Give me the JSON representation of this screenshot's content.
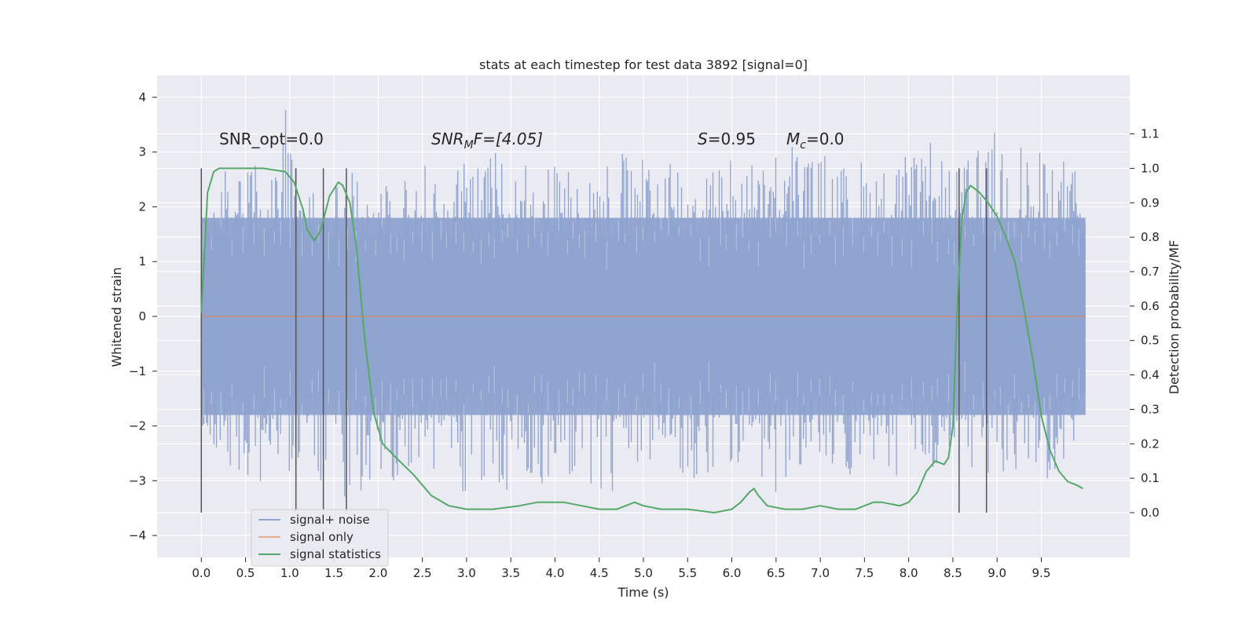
{
  "chart_data": {
    "type": "line",
    "title": "stats at each timestep for test data 3892 [signal=0]",
    "xlabel": "Time (s)",
    "ylabel": "Whitened strain",
    "y2label": "Detection probability/MF",
    "xlim": [
      -0.5,
      10.5
    ],
    "ylim": [
      -4.4,
      4.4
    ],
    "y2lim": [
      -0.13,
      1.27
    ],
    "grid": true,
    "legend_position": "lower-left",
    "x_ticks": [
      "0.0",
      "0.5",
      "1.0",
      "1.5",
      "2.0",
      "2.5",
      "3.0",
      "3.5",
      "4.0",
      "4.5",
      "5.0",
      "5.5",
      "6.0",
      "6.5",
      "7.0",
      "7.5",
      "8.0",
      "8.5",
      "9.0",
      "9.5"
    ],
    "y_ticks": [
      "−4",
      "−3",
      "−2",
      "−1",
      "0",
      "1",
      "2",
      "3",
      "4"
    ],
    "y2_ticks": [
      "0.0",
      "0.1",
      "0.2",
      "0.3",
      "0.4",
      "0.5",
      "0.6",
      "0.7",
      "0.8",
      "0.9",
      "1.0",
      "1.1"
    ],
    "annotations": {
      "snr_opt": "SNR_opt=0.0",
      "snr_mf_base": "SNR",
      "snr_mf_sub": "M",
      "snr_mf_rest": "F=[4.05]",
      "s_label": "S",
      "s_value": "=0.95",
      "mc_base": "M",
      "mc_sub": "c",
      "mc_value": "=0.0"
    },
    "vlines_x": [
      0.0,
      1.07,
      1.38,
      1.64,
      8.57,
      8.88
    ],
    "noise_envelope": {
      "x_range": [
        0.0,
        10.0
      ],
      "peak_upper": [
        [
          0.0,
          1.7
        ],
        [
          0.15,
          2.4
        ],
        [
          0.3,
          2.8
        ],
        [
          0.45,
          2.5
        ],
        [
          0.6,
          2.9
        ],
        [
          0.75,
          2.6
        ],
        [
          0.95,
          4.0
        ],
        [
          1.1,
          2.4
        ],
        [
          1.3,
          2.3
        ],
        [
          1.5,
          2.6
        ],
        [
          1.65,
          2.8
        ],
        [
          1.8,
          2.4
        ],
        [
          2.0,
          2.5
        ],
        [
          2.15,
          3.5
        ],
        [
          2.3,
          2.6
        ],
        [
          2.5,
          2.9
        ],
        [
          2.7,
          2.6
        ],
        [
          2.9,
          3.0
        ],
        [
          3.1,
          2.7
        ],
        [
          3.3,
          3.2
        ],
        [
          3.5,
          2.6
        ],
        [
          3.7,
          3.3
        ],
        [
          3.9,
          3.0
        ],
        [
          4.1,
          2.8
        ],
        [
          4.3,
          3.1
        ],
        [
          4.5,
          2.7
        ],
        [
          4.7,
          3.3
        ],
        [
          4.9,
          2.8
        ],
        [
          5.1,
          3.0
        ],
        [
          5.3,
          3.4
        ],
        [
          5.5,
          2.7
        ],
        [
          5.7,
          3.0
        ],
        [
          5.9,
          2.8
        ],
        [
          6.1,
          3.2
        ],
        [
          6.3,
          2.8
        ],
        [
          6.5,
          3.1
        ],
        [
          6.7,
          3.4
        ],
        [
          6.9,
          2.9
        ],
        [
          7.1,
          3.2
        ],
        [
          7.3,
          2.7
        ],
        [
          7.5,
          3.0
        ],
        [
          7.7,
          2.8
        ],
        [
          7.9,
          3.1
        ],
        [
          8.1,
          2.9
        ],
        [
          8.3,
          3.3
        ],
        [
          8.5,
          2.6
        ],
        [
          8.7,
          3.0
        ],
        [
          8.9,
          3.2
        ],
        [
          9.1,
          3.9
        ],
        [
          9.3,
          3.2
        ],
        [
          9.5,
          3.0
        ],
        [
          9.7,
          3.1
        ],
        [
          9.9,
          2.7
        ],
        [
          10.0,
          1.8
        ]
      ],
      "peak_lower": [
        [
          0.0,
          -2.4
        ],
        [
          0.15,
          -2.6
        ],
        [
          0.3,
          -2.9
        ],
        [
          0.45,
          -3.0
        ],
        [
          0.5,
          -3.6
        ],
        [
          0.7,
          -3.2
        ],
        [
          0.9,
          -3.1
        ],
        [
          1.1,
          -2.8
        ],
        [
          1.3,
          -3.0
        ],
        [
          1.5,
          -3.1
        ],
        [
          1.7,
          -3.5
        ],
        [
          1.9,
          -3.0
        ],
        [
          2.1,
          -2.9
        ],
        [
          2.3,
          -3.2
        ],
        [
          2.5,
          -2.8
        ],
        [
          2.7,
          -3.0
        ],
        [
          2.9,
          -3.3
        ],
        [
          3.1,
          -3.1
        ],
        [
          3.35,
          -3.95
        ],
        [
          3.5,
          -3.3
        ],
        [
          3.7,
          -2.9
        ],
        [
          3.9,
          -3.1
        ],
        [
          4.1,
          -2.9
        ],
        [
          4.3,
          -3.1
        ],
        [
          4.5,
          -3.3
        ],
        [
          4.7,
          -3.2
        ],
        [
          4.9,
          -2.9
        ],
        [
          5.1,
          -3.0
        ],
        [
          5.3,
          -2.8
        ],
        [
          5.5,
          -3.1
        ],
        [
          5.7,
          -2.9
        ],
        [
          5.9,
          -3.0
        ],
        [
          6.1,
          -2.8
        ],
        [
          6.3,
          -3.0
        ],
        [
          6.5,
          -3.3
        ],
        [
          6.7,
          -2.9
        ],
        [
          6.9,
          -3.0
        ],
        [
          7.1,
          -3.1
        ],
        [
          7.3,
          -2.9
        ],
        [
          7.5,
          -3.0
        ],
        [
          7.7,
          -2.8
        ],
        [
          7.9,
          -3.2
        ],
        [
          8.1,
          -2.9
        ],
        [
          8.3,
          -3.0
        ],
        [
          8.5,
          -2.8
        ],
        [
          8.7,
          -3.1
        ],
        [
          8.9,
          -2.9
        ],
        [
          9.1,
          -3.0
        ],
        [
          9.3,
          -3.4
        ],
        [
          9.5,
          -2.9
        ],
        [
          9.7,
          -3.3
        ],
        [
          9.9,
          -2.3
        ],
        [
          10.0,
          -1.0
        ]
      ],
      "typical_upper": 1.8,
      "typical_lower": -1.8
    },
    "series": [
      {
        "name": "signal+ noise",
        "color": "#8fa3cf",
        "representation": "noise envelope"
      },
      {
        "name": "signal only",
        "color": "#dd8452",
        "x": [
          0.0,
          10.0
        ],
        "y": [
          0.0,
          0.0
        ]
      },
      {
        "name": "signal statistics",
        "color": "#55a868",
        "axis": "right",
        "x": [
          0.0,
          0.07,
          0.14,
          0.2,
          0.3,
          0.5,
          0.7,
          0.95,
          1.05,
          1.15,
          1.2,
          1.28,
          1.35,
          1.45,
          1.55,
          1.6,
          1.68,
          1.75,
          1.85,
          1.95,
          2.05,
          2.2,
          2.4,
          2.6,
          2.8,
          3.0,
          3.3,
          3.6,
          3.8,
          4.0,
          4.1,
          4.3,
          4.5,
          4.7,
          4.9,
          5.0,
          5.2,
          5.5,
          5.8,
          6.0,
          6.1,
          6.2,
          6.25,
          6.3,
          6.4,
          6.6,
          6.8,
          7.0,
          7.2,
          7.4,
          7.6,
          7.7,
          7.9,
          8.0,
          8.1,
          8.2,
          8.3,
          8.4,
          8.45,
          8.5,
          8.55,
          8.6,
          8.65,
          8.7,
          8.75,
          8.8,
          8.9,
          9.0,
          9.1,
          9.2,
          9.3,
          9.4,
          9.5,
          9.6,
          9.7,
          9.8,
          9.9,
          9.97
        ],
        "y": [
          0.58,
          0.93,
          0.99,
          1.0,
          1.0,
          1.0,
          1.0,
          0.99,
          0.96,
          0.88,
          0.82,
          0.79,
          0.82,
          0.92,
          0.96,
          0.95,
          0.9,
          0.78,
          0.5,
          0.29,
          0.2,
          0.16,
          0.11,
          0.05,
          0.02,
          0.01,
          0.01,
          0.02,
          0.03,
          0.03,
          0.03,
          0.02,
          0.01,
          0.01,
          0.03,
          0.02,
          0.01,
          0.01,
          0.0,
          0.01,
          0.03,
          0.06,
          0.07,
          0.05,
          0.02,
          0.01,
          0.01,
          0.02,
          0.01,
          0.01,
          0.03,
          0.03,
          0.02,
          0.03,
          0.06,
          0.12,
          0.15,
          0.14,
          0.16,
          0.25,
          0.6,
          0.85,
          0.93,
          0.95,
          0.94,
          0.93,
          0.9,
          0.86,
          0.8,
          0.73,
          0.6,
          0.45,
          0.28,
          0.18,
          0.12,
          0.09,
          0.08,
          0.07
        ]
      }
    ]
  }
}
